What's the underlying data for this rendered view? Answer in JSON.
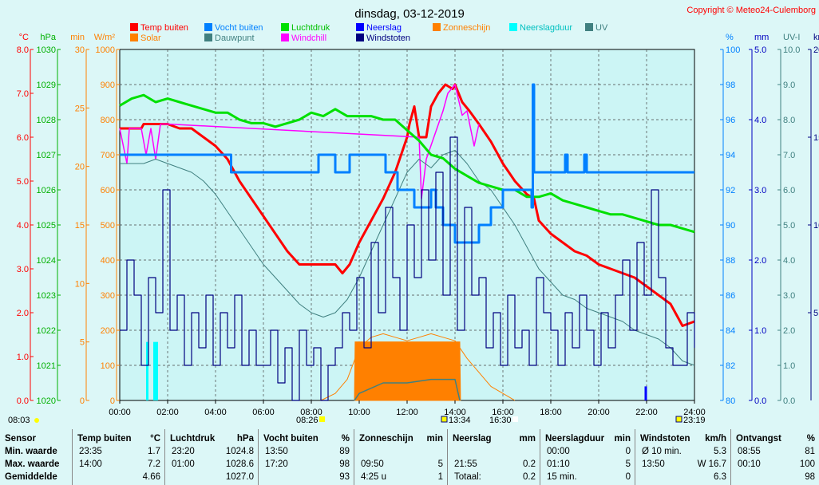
{
  "title": "dinsdag, 03-12-2019",
  "copyright": "Copyright © Meteo24-Culemborg",
  "legend": [
    {
      "label": "Temp buiten",
      "color": "#ff0000",
      "text_color": "#ff0000"
    },
    {
      "label": "Vocht buiten",
      "color": "#0080ff",
      "text_color": "#0080ff"
    },
    {
      "label": "Luchtdruk",
      "color": "#00e000",
      "text_color": "#00c000"
    },
    {
      "label": "Neerslag",
      "color": "#0000ff",
      "text_color": "#0000ff"
    },
    {
      "label": "Zonneschijn",
      "color": "#ff8000",
      "text_color": "#ff8000"
    },
    {
      "label": "Neerslagduur",
      "color": "#00ffff",
      "text_color": "#00c0c0"
    },
    {
      "label": "UV",
      "color": "#408080",
      "text_color": "#408080"
    },
    {
      "label": "Solar",
      "color": "#ff8000",
      "text_color": "#ff8000"
    },
    {
      "label": "Dauwpunt",
      "color": "#408080",
      "text_color": "#408080"
    },
    {
      "label": "Windchill",
      "color": "#ff00ff",
      "text_color": "#ff00ff"
    },
    {
      "label": "Windstoten",
      "color": "#000080",
      "text_color": "#000080"
    }
  ],
  "chart_data": {
    "type": "line",
    "x_axis": {
      "range": [
        "00:00",
        "24:00"
      ],
      "ticks": [
        "00:00",
        "02:00",
        "04:00",
        "06:00",
        "08:00",
        "10:00",
        "12:00",
        "14:00",
        "16:00",
        "18:00",
        "20:00",
        "22:00",
        "24:00"
      ]
    },
    "left_axes": [
      {
        "unit": "°C",
        "color": "#ff0000",
        "range": [
          0,
          8
        ],
        "ticks": [
          "0.0",
          "1.0",
          "2.0",
          "3.0",
          "4.0",
          "5.0",
          "6.0",
          "7.0",
          "8.0"
        ]
      },
      {
        "unit": "hPa",
        "color": "#00b000",
        "range": [
          1020,
          1030
        ],
        "ticks": [
          "1020",
          "1021",
          "1022",
          "1023",
          "1024",
          "1025",
          "1026",
          "1027",
          "1028",
          "1029",
          "1030"
        ]
      },
      {
        "unit": "min",
        "color": "#ff8000",
        "range": [
          0,
          30
        ],
        "ticks": [
          "0",
          "5",
          "10",
          "15",
          "20",
          "25",
          "30"
        ]
      },
      {
        "unit": "W/m²",
        "color": "#ff8000",
        "range": [
          0,
          1000
        ],
        "ticks": [
          "0",
          "100",
          "200",
          "300",
          "400",
          "500",
          "600",
          "700",
          "800",
          "900",
          "1000"
        ]
      }
    ],
    "right_axes": [
      {
        "unit": "%",
        "color": "#0080ff",
        "range": [
          80,
          100
        ],
        "ticks": [
          "80",
          "82",
          "84",
          "86",
          "88",
          "90",
          "92",
          "94",
          "96",
          "98",
          "100"
        ]
      },
      {
        "unit": "mm",
        "color": "#0000c0",
        "range": [
          0,
          5
        ],
        "ticks": [
          "0.0",
          "1.0",
          "2.0",
          "3.0",
          "4.0",
          "5.0"
        ]
      },
      {
        "unit": "UV-I",
        "color": "#408080",
        "range": [
          0,
          10
        ],
        "ticks": [
          "0.0",
          "1.0",
          "2.0",
          "3.0",
          "4.0",
          "5.0",
          "6.0",
          "7.0",
          "8.0",
          "9.0",
          "10.0"
        ]
      },
      {
        "unit": "km/h",
        "color": "#000080",
        "range": [
          0,
          20
        ],
        "ticks": [
          "5.0",
          "10.0",
          "15.0",
          "20.0"
        ]
      }
    ],
    "sun_events": {
      "sunrise": "08:26",
      "transit": "13:34",
      "sunset": "16:30",
      "moonset": "08:03",
      "moonrise": "23:19"
    },
    "series": [
      {
        "name": "Temp buiten",
        "axis": "°C",
        "color": "#ff0000",
        "x": [
          0,
          0.9,
          1,
          1.7,
          2,
          2.5,
          3,
          3.5,
          4,
          4.5,
          5,
          5.5,
          6,
          6.5,
          7,
          7.5,
          8,
          8.5,
          9,
          9.3,
          9.6,
          10,
          10.5,
          11,
          11.5,
          12,
          12.1,
          12.3,
          12.5,
          12.8,
          13,
          13.3,
          13.6,
          13.9,
          14,
          14.3,
          14.6,
          15,
          15.5,
          16,
          16.5,
          17,
          17.3,
          17.5,
          18,
          18.5,
          19,
          19.5,
          20,
          20.5,
          21,
          21.5,
          22,
          22.5,
          23,
          23.5,
          24
        ],
        "y": [
          6.2,
          6.2,
          6.3,
          6.3,
          6.3,
          6.2,
          6.2,
          6.0,
          5.8,
          5.5,
          5.0,
          4.6,
          4.2,
          3.8,
          3.4,
          3.1,
          3.1,
          3.1,
          3.1,
          2.9,
          3.1,
          3.6,
          4.1,
          4.6,
          5.2,
          6.0,
          6.3,
          6.7,
          6.0,
          6.0,
          6.7,
          7.0,
          7.2,
          7.1,
          7.2,
          6.8,
          6.6,
          6.3,
          5.9,
          5.4,
          5.0,
          4.7,
          4.6,
          4.1,
          3.8,
          3.6,
          3.4,
          3.3,
          3.1,
          3.0,
          2.9,
          2.8,
          2.6,
          2.4,
          2.2,
          1.7,
          1.8
        ]
      },
      {
        "name": "Windchill",
        "axis": "°C",
        "color": "#ff00ff",
        "x": [
          0,
          0.3,
          0.4,
          0.9,
          1.1,
          1.3,
          1.5,
          1.7,
          2,
          12.5,
          12.6,
          12.8,
          13.5,
          13.7,
          14,
          14.3,
          14.5,
          14.8,
          15
        ],
        "y": [
          6.2,
          5.4,
          6.2,
          6.2,
          5.6,
          6.2,
          5.5,
          6.3,
          6.3,
          6.0,
          4.6,
          5.5,
          6.6,
          7.0,
          7.2,
          6.5,
          6.6,
          5.8,
          6.3
        ]
      },
      {
        "name": "Dauwpunt",
        "axis": "°C",
        "color": "#408080",
        "x": [
          0,
          1,
          1.5,
          2,
          2.5,
          3,
          3.5,
          4,
          4.5,
          5,
          5.5,
          6,
          6.5,
          7,
          7.5,
          8,
          8.5,
          9,
          9.5,
          10,
          10.5,
          11,
          11.5,
          12,
          12.5,
          13,
          13.5,
          14,
          14.5,
          15,
          15.5,
          16,
          16.5,
          17,
          17.5,
          18,
          18.5,
          19,
          19.5,
          20,
          20.5,
          21,
          21.5,
          22,
          22.5,
          23,
          23.5,
          24
        ],
        "y": [
          5.4,
          5.4,
          5.5,
          5.4,
          5.3,
          5.2,
          5.0,
          4.7,
          4.3,
          3.9,
          3.5,
          3.1,
          2.8,
          2.5,
          2.2,
          2.0,
          1.9,
          2.0,
          2.3,
          2.8,
          3.4,
          4.0,
          4.6,
          5.2,
          5.5,
          5.3,
          5.6,
          5.7,
          5.4,
          5.0,
          4.8,
          4.4,
          4.0,
          3.5,
          3.0,
          2.7,
          2.4,
          2.3,
          2.1,
          2.0,
          1.9,
          1.8,
          1.6,
          1.5,
          1.4,
          1.2,
          0.9,
          0.8
        ]
      },
      {
        "name": "Luchtdruk",
        "axis": "hPa",
        "color": "#00e000",
        "x": [
          0,
          0.5,
          1,
          1.5,
          2,
          2.5,
          3,
          3.5,
          4,
          4.5,
          5,
          5.5,
          6,
          6.5,
          7,
          7.5,
          8,
          8.5,
          9,
          9.5,
          10,
          10.5,
          11,
          11.5,
          12,
          12.5,
          13,
          13.5,
          14,
          14.5,
          15,
          15.5,
          16,
          16.5,
          17,
          17.5,
          18,
          18.5,
          19,
          19.5,
          20,
          20.5,
          21,
          21.5,
          22,
          22.5,
          23,
          23.5,
          24
        ],
        "y": [
          1028.4,
          1028.6,
          1028.7,
          1028.5,
          1028.6,
          1028.5,
          1028.4,
          1028.3,
          1028.2,
          1028.2,
          1028.0,
          1027.9,
          1027.9,
          1027.8,
          1027.9,
          1028.0,
          1028.2,
          1028.1,
          1028.3,
          1028.1,
          1028.1,
          1028.1,
          1028.0,
          1028.0,
          1027.7,
          1027.4,
          1027.0,
          1026.9,
          1026.6,
          1026.4,
          1026.2,
          1026.1,
          1026.0,
          1026.0,
          1025.8,
          1025.8,
          1025.9,
          1025.7,
          1025.6,
          1025.5,
          1025.4,
          1025.3,
          1025.3,
          1025.2,
          1025.1,
          1025.0,
          1025.0,
          1024.9,
          1024.8
        ]
      },
      {
        "name": "Vocht buiten",
        "axis": "%",
        "color": "#0080ff",
        "x": [
          0,
          4.6,
          4.65,
          4.7,
          5,
          8,
          8.3,
          8.9,
          9,
          9.5,
          9.6,
          9.7,
          10,
          11,
          11.1,
          11.3,
          11.6,
          12,
          12.3,
          12.8,
          13,
          13.2,
          13.5,
          13.8,
          14,
          14.5,
          15,
          15.5,
          16,
          17,
          17.2,
          17.25,
          17.3,
          18,
          18.5,
          18.6,
          18.7,
          19,
          19.3,
          19.4,
          19.5,
          24
        ],
        "y": [
          94,
          94,
          93,
          93,
          93,
          93,
          94,
          94,
          93,
          93,
          94,
          94,
          94,
          94,
          93,
          93,
          92,
          92,
          91,
          91,
          92,
          91,
          90,
          90,
          89,
          89,
          90,
          91,
          92,
          92,
          91,
          98,
          93,
          93,
          93,
          94,
          93,
          93,
          93,
          94,
          93,
          93
        ]
      },
      {
        "name": "Zonneschijn",
        "axis": "min",
        "color": "#ff8000",
        "x": [
          9.8,
          9.83,
          14.2,
          14.23
        ],
        "y": [
          0,
          5,
          5,
          0
        ]
      },
      {
        "name": "Solar",
        "axis": "W/m²",
        "color": "#ff8000",
        "x": [
          8.4,
          9,
          9.5,
          10,
          10.5,
          11,
          11.5,
          12,
          12.5,
          13,
          13.5,
          14,
          14.5,
          15,
          15.5,
          16,
          16.5
        ],
        "y": [
          0,
          20,
          60,
          150,
          180,
          190,
          180,
          170,
          180,
          190,
          180,
          170,
          120,
          80,
          40,
          20,
          0
        ]
      },
      {
        "name": "UV",
        "axis": "UV-I",
        "color": "#408080",
        "x": [
          9.8,
          10,
          11,
          12,
          13,
          14,
          14.2
        ],
        "y": [
          0,
          0.2,
          0.5,
          0.5,
          0.6,
          0.6,
          0
        ]
      },
      {
        "name": "Neerslag",
        "axis": "mm",
        "color": "#0000ff",
        "x": [
          21.9,
          21.95,
          22.0
        ],
        "y": [
          0,
          0.2,
          0
        ]
      },
      {
        "name": "Neerslagduur",
        "axis": "min",
        "color": "#00ffff",
        "x": [
          1.1,
          1.4,
          1.5
        ],
        "y": [
          5,
          5,
          5
        ]
      },
      {
        "name": "Windstoten",
        "axis": "km/h",
        "color": "#000080",
        "x": [
          0,
          0.3,
          0.6,
          0.9,
          1.2,
          1.5,
          1.8,
          2.1,
          2.4,
          2.7,
          3,
          3.3,
          3.6,
          3.9,
          4.2,
          4.5,
          4.8,
          5.1,
          5.4,
          5.7,
          6,
          6.3,
          6.6,
          6.9,
          7.2,
          7.5,
          7.8,
          8.1,
          8.4,
          8.7,
          9,
          9.3,
          9.6,
          9.9,
          10.2,
          10.5,
          10.8,
          11.1,
          11.4,
          11.7,
          12,
          12.3,
          12.6,
          12.9,
          13.2,
          13.5,
          13.8,
          14.1,
          14.4,
          14.7,
          15,
          15.3,
          15.6,
          15.9,
          16.2,
          16.5,
          16.8,
          17.1,
          17.4,
          17.7,
          18,
          18.3,
          18.6,
          18.9,
          19.2,
          19.5,
          19.8,
          20.1,
          20.4,
          20.7,
          21,
          21.3,
          21.6,
          21.9,
          22.2,
          22.5,
          22.8,
          23.1,
          23.4,
          23.7,
          24
        ],
        "y": [
          4,
          8,
          6,
          2,
          7,
          5,
          12,
          4,
          6,
          2,
          5,
          3,
          6,
          2,
          5,
          3,
          6,
          2,
          4,
          2,
          2,
          4,
          1,
          3,
          0,
          4,
          2,
          3,
          0,
          2,
          3,
          5,
          4,
          7,
          3,
          9,
          5,
          11,
          7,
          4,
          10,
          7,
          12,
          8,
          13,
          6,
          15,
          4,
          11,
          6,
          7,
          3,
          5,
          2,
          6,
          3,
          4,
          2,
          7,
          5,
          4,
          2,
          5,
          3,
          6,
          4,
          2,
          5,
          3,
          6,
          8,
          4,
          9,
          6,
          12,
          7,
          3,
          2,
          2,
          5,
          3
        ]
      }
    ]
  },
  "stats": {
    "columns": [
      {
        "header": "Sensor",
        "unit": "",
        "rows": [
          {
            "time": "Min. waarde",
            "value": ""
          },
          {
            "time": "Max. waarde",
            "value": ""
          },
          {
            "time": "Gemiddelde",
            "value": ""
          }
        ]
      },
      {
        "header": "Temp buiten",
        "unit": "°C",
        "rows": [
          {
            "time": "23:35",
            "value": "1.7"
          },
          {
            "time": "14:00",
            "value": "7.2"
          },
          {
            "time": "",
            "value": "4.66"
          }
        ]
      },
      {
        "header": "Luchtdruk",
        "unit": "hPa",
        "rows": [
          {
            "time": "23:20",
            "value": "1024.8"
          },
          {
            "time": "01:00",
            "value": "1028.6"
          },
          {
            "time": "",
            "value": "1027.0"
          }
        ]
      },
      {
        "header": "Vocht buiten",
        "unit": "%",
        "rows": [
          {
            "time": "13:50",
            "value": "89"
          },
          {
            "time": "17:20",
            "value": "98"
          },
          {
            "time": "",
            "value": "93"
          }
        ]
      },
      {
        "header": "Zonneschijn",
        "unit": "min",
        "rows": [
          {
            "time": "",
            "value": ""
          },
          {
            "time": "09:50",
            "value": "5"
          },
          {
            "time": "4:25 u",
            "value": "1"
          }
        ]
      },
      {
        "header": "Neerslag",
        "unit": "mm",
        "rows": [
          {
            "time": "",
            "value": ""
          },
          {
            "time": "21:55",
            "value": "0.2"
          },
          {
            "time": "Totaal:",
            "value": "0.2"
          }
        ]
      },
      {
        "header": "Neerslagduur",
        "unit": "min",
        "rows": [
          {
            "time": "00:00",
            "value": "0"
          },
          {
            "time": "01:10",
            "value": "5"
          },
          {
            "time": "15 min.",
            "value": "0"
          }
        ]
      },
      {
        "header": "Windstoten",
        "unit": "km/h",
        "rows": [
          {
            "time": "Ø 10 min.",
            "value": "5.3"
          },
          {
            "time": "13:50",
            "value": "W 16.7"
          },
          {
            "time": "",
            "value": "6.3"
          }
        ]
      },
      {
        "header": "Ontvangst",
        "unit": "%",
        "rows": [
          {
            "time": "08:55",
            "value": "81"
          },
          {
            "time": "00:10",
            "value": "100"
          },
          {
            "time": "",
            "value": "98"
          }
        ]
      }
    ]
  }
}
